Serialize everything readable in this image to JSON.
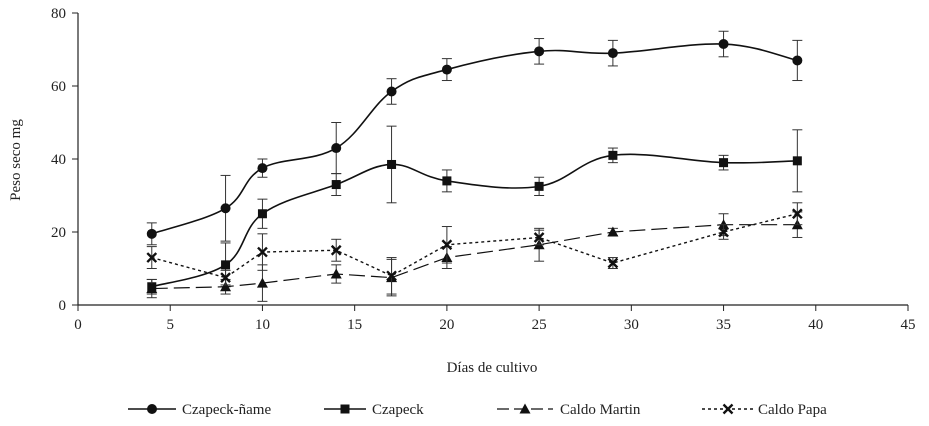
{
  "chart_data": {
    "type": "line",
    "title": "",
    "xlabel": "Días de cultivo",
    "ylabel": "Peso seco mg",
    "xlim": [
      0,
      45
    ],
    "ylim": [
      0,
      80
    ],
    "x_ticks": [
      "0",
      "5",
      "10",
      "15",
      "20",
      "25",
      "30",
      "35",
      "40",
      "45"
    ],
    "y_ticks": [
      "0",
      "20",
      "40",
      "60",
      "80"
    ],
    "grid": false,
    "legend_position": "bottom",
    "series": [
      {
        "name": "Czapeck-ñame",
        "marker": "circle",
        "dash": "solid",
        "points": [
          {
            "x": 4,
            "y": 19.5,
            "err": 3
          },
          {
            "x": 8,
            "y": 26.5,
            "err": 9
          },
          {
            "x": 10,
            "y": 37.5,
            "err": 2.5
          },
          {
            "x": 14,
            "y": 43,
            "err": 7
          },
          {
            "x": 17,
            "y": 58.5,
            "err": 3.5
          },
          {
            "x": 20,
            "y": 64.5,
            "err": 3
          },
          {
            "x": 25,
            "y": 69.5,
            "err": 3.5
          },
          {
            "x": 29,
            "y": 69,
            "err": 3.5
          },
          {
            "x": 35,
            "y": 71.5,
            "err": 3.5
          },
          {
            "x": 39,
            "y": 67,
            "err": 5.5
          }
        ]
      },
      {
        "name": "Czapeck",
        "marker": "square",
        "dash": "solid",
        "points": [
          {
            "x": 4,
            "y": 5,
            "err": 2
          },
          {
            "x": 8,
            "y": 11,
            "err": 6
          },
          {
            "x": 10,
            "y": 25,
            "err": 4
          },
          {
            "x": 14,
            "y": 33,
            "err": 3
          },
          {
            "x": 17,
            "y": 38.5,
            "err": 10.5
          },
          {
            "x": 20,
            "y": 34,
            "err": 3
          },
          {
            "x": 25,
            "y": 32.5,
            "err": 2.5
          },
          {
            "x": 29,
            "y": 41,
            "err": 2
          },
          {
            "x": 35,
            "y": 39,
            "err": 2
          },
          {
            "x": 39,
            "y": 39.5,
            "err": 8.5
          }
        ]
      },
      {
        "name": "Caldo Martin",
        "marker": "triangle",
        "dash": "longdash",
        "points": [
          {
            "x": 4,
            "y": 4.5,
            "err": 2.5
          },
          {
            "x": 8,
            "y": 5,
            "err": 2
          },
          {
            "x": 10,
            "y": 6,
            "err": 5
          },
          {
            "x": 14,
            "y": 8.5,
            "err": 2.5
          },
          {
            "x": 17,
            "y": 7.5,
            "err": 5
          },
          {
            "x": 20,
            "y": 13,
            "err": 3
          },
          {
            "x": 25,
            "y": 16.5,
            "err": 4.5
          },
          {
            "x": 29,
            "y": 20,
            "err": 1
          },
          {
            "x": 35,
            "y": 22,
            "err": 3
          },
          {
            "x": 39,
            "y": 22,
            "err": 3.5
          }
        ]
      },
      {
        "name": "Caldo Papa",
        "marker": "x",
        "dash": "dotted",
        "points": [
          {
            "x": 4,
            "y": 13,
            "err": 3
          },
          {
            "x": 8,
            "y": 7.5,
            "err": 2
          },
          {
            "x": 10,
            "y": 14.5,
            "err": 5
          },
          {
            "x": 14,
            "y": 15,
            "err": 3
          },
          {
            "x": 17,
            "y": 8,
            "err": 5
          },
          {
            "x": 20,
            "y": 16.5,
            "err": 5
          },
          {
            "x": 25,
            "y": 18.5,
            "err": 2
          },
          {
            "x": 29,
            "y": 11.5,
            "err": 1.5
          },
          {
            "x": 35,
            "y": 20,
            "err": 2
          },
          {
            "x": 39,
            "y": 25,
            "err": 3
          }
        ]
      }
    ]
  }
}
